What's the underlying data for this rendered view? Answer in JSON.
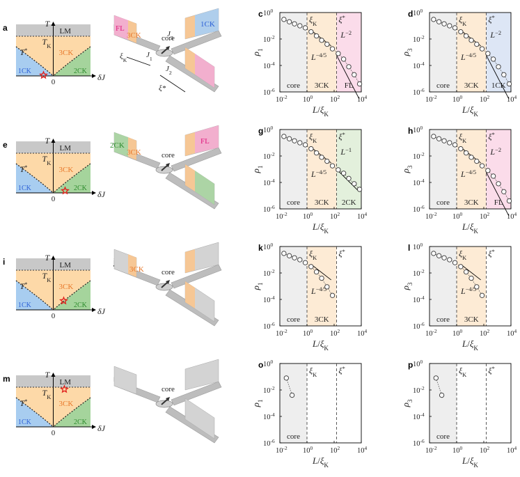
{
  "rows": [
    {
      "phase": {
        "label": "a",
        "T": "T",
        "TK": "T",
        "TK_sub": "K",
        "Tstar": "T",
        "Tstar_sup": "*",
        "LM": "LM",
        "region_mid": "3CK",
        "region_left": "1CK",
        "region_right": "2CK",
        "x_axis": "δJ",
        "zero": "0",
        "star_pos": "left-bottom"
      },
      "schem": {
        "label": "b",
        "core": "core",
        "labels": [
          {
            "t": "FL",
            "c": "#e0197d"
          },
          {
            "t": "3CK",
            "c": "#e8782a"
          },
          {
            "t": "1CK",
            "c": "#2a5fd6"
          }
        ],
        "annot": {
          "xiK": "ξ",
          "xiK_sub": "K",
          "J1": "J",
          "J1_sub": "1",
          "J2": "J",
          "J2_sub": "2",
          "J3": "J",
          "J3_sub": "3",
          "xistar": "ξ*"
        }
      },
      "plots": [
        {
          "label": "c",
          "ylabel": "ρ",
          "ylabel_sub": "1",
          "bands": [
            "core",
            "3CK",
            "FL"
          ],
          "band_colors": [
            "#eeeeee",
            "#fdebd5",
            "#fbdcea"
          ],
          "labels": [
            {
              "t": "L",
              "sup": "−4/5"
            },
            {
              "t": "L",
              "sup": "−2"
            }
          ]
        },
        {
          "label": "d",
          "ylabel": "ρ",
          "ylabel_sub": "3",
          "bands": [
            "core",
            "3CK",
            "1CK"
          ],
          "band_colors": [
            "#eeeeee",
            "#fdebd5",
            "#dde6f5"
          ],
          "labels": [
            {
              "t": "L",
              "sup": "−4/5"
            },
            {
              "t": "L",
              "sup": "−2"
            }
          ]
        }
      ]
    },
    {
      "phase": {
        "label": "e",
        "T": "T",
        "TK": "T",
        "TK_sub": "K",
        "Tstar": "T",
        "Tstar_sup": "*",
        "LM": "LM",
        "region_mid": "3CK",
        "region_left": "1CK",
        "region_right": "2CK",
        "x_axis": "δJ",
        "zero": "0",
        "star_pos": "right-bottom"
      },
      "schem": {
        "label": "f",
        "core": "core",
        "labels": [
          {
            "t": "2CK",
            "c": "#2b8a2b"
          },
          {
            "t": "3CK",
            "c": "#e8782a"
          },
          {
            "t": "FL",
            "c": "#e0197d"
          }
        ]
      },
      "plots": [
        {
          "label": "g",
          "ylabel": "ρ",
          "ylabel_sub": "1",
          "bands": [
            "core",
            "3CK",
            "2CK"
          ],
          "band_colors": [
            "#eeeeee",
            "#fdebd5",
            "#e3f0dc"
          ],
          "labels": [
            {
              "t": "L",
              "sup": "−4/5"
            },
            {
              "t": "L",
              "sup": "−1"
            }
          ]
        },
        {
          "label": "h",
          "ylabel": "ρ",
          "ylabel_sub": "3",
          "bands": [
            "core",
            "3CK",
            "FL"
          ],
          "band_colors": [
            "#eeeeee",
            "#fdebd5",
            "#fbdcea"
          ],
          "labels": [
            {
              "t": "L",
              "sup": "−4/5"
            },
            {
              "t": "L",
              "sup": "−2"
            }
          ]
        }
      ]
    },
    {
      "phase": {
        "label": "i",
        "T": "T",
        "TK": "T",
        "TK_sub": "K",
        "Tstar": "T",
        "Tstar_sup": "*",
        "LM": "LM",
        "region_mid": "3CK",
        "region_left": "1CK",
        "region_right": "2CK",
        "x_axis": "δJ",
        "zero": "0",
        "star_pos": "right-mid"
      },
      "schem": {
        "label": "j",
        "core": "core",
        "labels": [
          {
            "t": "3CK",
            "c": "#e8782a"
          }
        ]
      },
      "plots": [
        {
          "label": "k",
          "ylabel": "ρ",
          "ylabel_sub": "1",
          "bands": [
            "core",
            "3CK",
            ""
          ],
          "band_colors": [
            "#eeeeee",
            "#fdebd5",
            "#ffffff"
          ],
          "labels": [
            {
              "t": "L",
              "sup": "−4/5"
            }
          ]
        },
        {
          "label": "l",
          "ylabel": "ρ",
          "ylabel_sub": "3",
          "bands": [
            "core",
            "3CK",
            ""
          ],
          "band_colors": [
            "#eeeeee",
            "#fdebd5",
            "#ffffff"
          ],
          "labels": [
            {
              "t": "L",
              "sup": "−4/5"
            }
          ]
        }
      ]
    },
    {
      "phase": {
        "label": "m",
        "T": "T",
        "TK": "T",
        "TK_sub": "K",
        "Tstar": "T",
        "Tstar_sup": "*",
        "LM": "LM",
        "region_mid": "3CK",
        "region_left": "1CK",
        "region_right": "2CK",
        "x_axis": "δJ",
        "zero": "0",
        "star_pos": "LM"
      },
      "schem": {
        "label": "n",
        "core": "core",
        "labels": []
      },
      "plots": [
        {
          "label": "o",
          "ylabel": "ρ",
          "ylabel_sub": "1",
          "bands": [
            "core",
            "",
            ""
          ],
          "band_colors": [
            "#eeeeee",
            "#ffffff",
            "#ffffff"
          ],
          "labels": []
        },
        {
          "label": "p",
          "ylabel": "ρ",
          "ylabel_sub": "3",
          "bands": [
            "core",
            "",
            ""
          ],
          "band_colors": [
            "#eeeeee",
            "#ffffff",
            "#ffffff"
          ],
          "labels": []
        }
      ]
    }
  ],
  "axes": {
    "xlabel": "L/ξ",
    "xlabel_sub": "K",
    "xticks": [
      "10",
      "10",
      "10",
      "10"
    ],
    "xtick_exp": [
      "-2",
      "0",
      "2",
      "4"
    ],
    "yticks": [
      "10",
      "10",
      "10",
      "10"
    ],
    "ytick_exp": [
      "0",
      "-2",
      "-4",
      "-6"
    ],
    "xiK": "ξ",
    "xiK_sub": "K",
    "xistar": "ξ",
    "xistar_sup": "*"
  },
  "colors": {
    "LM": "#c8c8c8",
    "mid": "#fdd9a8",
    "left": "#a8cdf0",
    "right": "#a5d49c",
    "star": "#e0201c"
  },
  "chart_data": [
    {
      "type": "scatter",
      "panel": "c",
      "xscale": "log",
      "yscale": "log",
      "xlim": [
        0.01,
        10000
      ],
      "ylim": [
        1e-06,
        1
      ],
      "xiK": 1,
      "xistar": 150,
      "series": [
        {
          "x": [
            0.02,
            0.05,
            0.12,
            0.3,
            0.75,
            2,
            5,
            12,
            30,
            75,
            200,
            500,
            1200,
            3000,
            7500
          ],
          "y": [
            0.3,
            0.2,
            0.14,
            0.1,
            0.07,
            0.035,
            0.017,
            0.008,
            0.004,
            0.0018,
            0.0008,
            0.0003,
            8e-05,
            2e-05,
            4e-06
          ]
        }
      ],
      "fits": [
        {
          "x": [
            2,
            60
          ],
          "y": [
            0.045,
            0.003
          ]
        },
        {
          "x": [
            150,
            7000
          ],
          "y": [
            0.0006,
            3e-07
          ]
        }
      ]
    },
    {
      "type": "scatter",
      "panel": "d",
      "xscale": "log",
      "yscale": "log",
      "xlim": [
        0.01,
        10000
      ],
      "ylim": [
        1e-06,
        1
      ],
      "xiK": 1,
      "xistar": 150,
      "series": [
        {
          "x": [
            0.02,
            0.05,
            0.12,
            0.3,
            0.75,
            2,
            5,
            12,
            30,
            75,
            200,
            500,
            1200,
            3000,
            7500
          ],
          "y": [
            0.3,
            0.2,
            0.14,
            0.1,
            0.07,
            0.035,
            0.017,
            0.008,
            0.004,
            0.0018,
            0.0008,
            0.0003,
            8e-05,
            2e-05,
            4e-06
          ]
        }
      ],
      "fits": [
        {
          "x": [
            2,
            60
          ],
          "y": [
            0.045,
            0.003
          ]
        },
        {
          "x": [
            150,
            7000
          ],
          "y": [
            0.0006,
            3e-07
          ]
        }
      ]
    },
    {
      "type": "scatter",
      "panel": "g",
      "xscale": "log",
      "yscale": "log",
      "xlim": [
        0.01,
        10000
      ],
      "ylim": [
        1e-06,
        1
      ],
      "xiK": 1,
      "xistar": 150,
      "series": [
        {
          "x": [
            0.02,
            0.05,
            0.12,
            0.3,
            0.75,
            2,
            5,
            12,
            30,
            75,
            200,
            500,
            1200,
            3000,
            7500
          ],
          "y": [
            0.3,
            0.2,
            0.14,
            0.1,
            0.07,
            0.035,
            0.017,
            0.008,
            0.004,
            0.0018,
            0.0009,
            0.0005,
            0.0002,
            8e-05,
            3e-05
          ]
        }
      ],
      "fits": [
        {
          "x": [
            2,
            60
          ],
          "y": [
            0.045,
            0.003
          ]
        },
        {
          "x": [
            150,
            7000
          ],
          "y": [
            0.001,
            2e-05
          ]
        }
      ]
    },
    {
      "type": "scatter",
      "panel": "h",
      "xscale": "log",
      "yscale": "log",
      "xlim": [
        0.01,
        10000
      ],
      "ylim": [
        1e-06,
        1
      ],
      "xiK": 1,
      "xistar": 150,
      "series": [
        {
          "x": [
            0.02,
            0.05,
            0.12,
            0.3,
            0.75,
            2,
            5,
            12,
            30,
            75,
            200,
            500,
            1200,
            3000,
            7500
          ],
          "y": [
            0.3,
            0.2,
            0.14,
            0.1,
            0.07,
            0.035,
            0.017,
            0.008,
            0.004,
            0.0018,
            0.0008,
            0.0003,
            8e-05,
            2e-05,
            4e-06
          ]
        }
      ],
      "fits": [
        {
          "x": [
            2,
            60
          ],
          "y": [
            0.045,
            0.003
          ]
        },
        {
          "x": [
            150,
            7000
          ],
          "y": [
            0.0006,
            3e-07
          ]
        }
      ]
    },
    {
      "type": "scatter",
      "panel": "k",
      "xscale": "log",
      "yscale": "log",
      "xlim": [
        0.01,
        10000
      ],
      "ylim": [
        1e-06,
        1
      ],
      "xiK": 1,
      "xistar": 150,
      "series": [
        {
          "x": [
            0.02,
            0.05,
            0.12,
            0.3,
            0.75,
            2,
            5,
            12,
            30,
            75
          ],
          "y": [
            0.3,
            0.2,
            0.14,
            0.1,
            0.06,
            0.03,
            0.012,
            0.004,
            0.0009,
            0.0002
          ]
        }
      ],
      "fits": [
        {
          "x": [
            2,
            60
          ],
          "y": [
            0.045,
            0.003
          ]
        }
      ]
    },
    {
      "type": "scatter",
      "panel": "l",
      "xscale": "log",
      "yscale": "log",
      "xlim": [
        0.01,
        10000
      ],
      "ylim": [
        1e-06,
        1
      ],
      "xiK": 1,
      "xistar": 150,
      "series": [
        {
          "x": [
            0.02,
            0.05,
            0.12,
            0.3,
            0.75,
            2,
            5,
            12,
            30,
            75
          ],
          "y": [
            0.3,
            0.2,
            0.14,
            0.1,
            0.06,
            0.03,
            0.012,
            0.004,
            0.0009,
            0.0002
          ]
        }
      ],
      "fits": [
        {
          "x": [
            2,
            60
          ],
          "y": [
            0.045,
            0.003
          ]
        }
      ]
    },
    {
      "type": "scatter",
      "panel": "o",
      "xscale": "log",
      "yscale": "log",
      "xlim": [
        0.01,
        10000
      ],
      "ylim": [
        1e-06,
        1
      ],
      "xiK": 1,
      "xistar": 150,
      "series": [
        {
          "x": [
            0.03,
            0.08
          ],
          "y": [
            0.08,
            0.004
          ]
        }
      ],
      "fits": []
    },
    {
      "type": "scatter",
      "panel": "p",
      "xscale": "log",
      "yscale": "log",
      "xlim": [
        0.01,
        10000
      ],
      "ylim": [
        1e-06,
        1
      ],
      "xiK": 1,
      "xistar": 150,
      "series": [
        {
          "x": [
            0.03,
            0.08
          ],
          "y": [
            0.08,
            0.004
          ]
        }
      ],
      "fits": []
    }
  ]
}
